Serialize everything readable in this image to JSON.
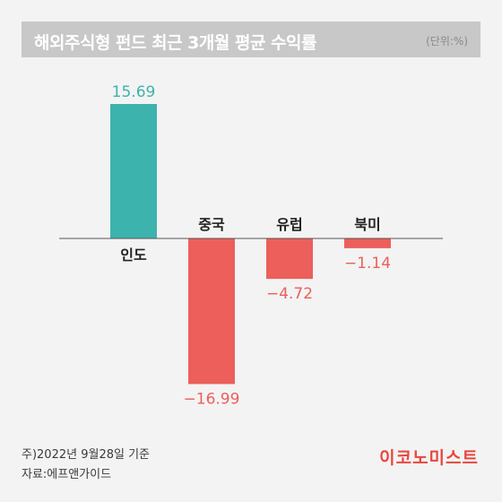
{
  "header": {
    "title": "해외주식형 펀드 최근 3개월 평균 수익률",
    "unit": "(단위:%)"
  },
  "chart_data": {
    "type": "bar",
    "title": "해외주식형 펀드 최근 3개월 평균 수익률",
    "unit": "(단위:%)",
    "categories": [
      "인도",
      "중국",
      "유럽",
      "북미"
    ],
    "values": [
      15.69,
      -16.99,
      -4.72,
      -1.14
    ],
    "value_labels": [
      "15.69",
      "−16.99",
      "−4.72",
      "−1.14"
    ],
    "colors": {
      "positive": "#3cb3ac",
      "negative": "#ec5f5b"
    },
    "ylim": [
      -17.5,
      16.5
    ],
    "grid": false
  },
  "footer": {
    "note": "주)2022년 9월28일 기준",
    "source": "자료:에프앤가이드",
    "brand": "이코노미스트"
  }
}
